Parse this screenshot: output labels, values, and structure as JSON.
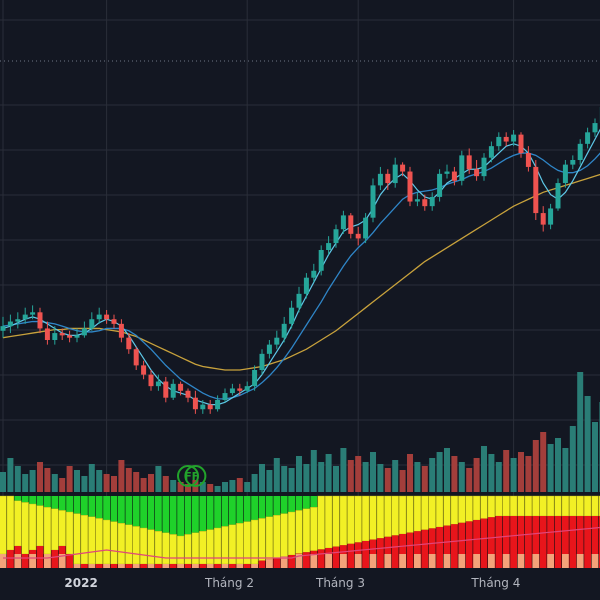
{
  "colors": {
    "background": "#131722",
    "grid": "#2a2e39",
    "up": "#26a69a",
    "down": "#ef5350",
    "vol_up": "#2a7d76",
    "vol_down": "#a33e3b",
    "ma_fast": "#5ec8e8",
    "ma_mid": "#2f86c8",
    "ma_slow": "#c8a23c",
    "marker": "#22a32b",
    "band_green": "#1fd12a",
    "band_yellow": "#f2f025",
    "band_red": "#e8151b",
    "band_salmon": "#f4a37a",
    "band_pink": "#e0457a"
  },
  "x_axis": {
    "labels": [
      {
        "text": "2022",
        "bold": true,
        "bar": 11
      },
      {
        "text": "Tháng 2",
        "bold": false,
        "bar": 30
      },
      {
        "text": "Tháng 3",
        "bold": false,
        "bar": 45
      },
      {
        "text": "Tháng 4",
        "bold": false,
        "bar": 66
      }
    ]
  },
  "markers": [
    {
      "text": "F",
      "bar": 25
    },
    {
      "text": "F",
      "bar": 26
    }
  ],
  "chart_data": {
    "type": "candlestick",
    "title": "",
    "x": [
      "b0",
      "b1",
      "b2",
      "b3",
      "b4",
      "b5",
      "b6",
      "b7",
      "b8",
      "b9",
      "b10",
      "b11",
      "b12",
      "b13",
      "b14",
      "b15",
      "b16",
      "b17",
      "b18",
      "b19",
      "b20",
      "b21",
      "b22",
      "b23",
      "b24",
      "b25",
      "b26",
      "b27",
      "b28",
      "b29",
      "b30",
      "b31",
      "b32",
      "b33",
      "b34",
      "b35",
      "b36",
      "b37",
      "b38",
      "b39",
      "b40",
      "b41",
      "b42",
      "b43",
      "b44",
      "b45",
      "b46",
      "b47",
      "b48",
      "b49",
      "b50",
      "b51",
      "b52",
      "b53",
      "b54",
      "b55",
      "b56",
      "b57",
      "b58",
      "b59",
      "b60",
      "b61",
      "b62",
      "b63",
      "b64",
      "b65",
      "b66",
      "b67",
      "b68",
      "b69",
      "b70",
      "b71",
      "b72",
      "b73",
      "b74",
      "b75",
      "b76",
      "b77",
      "b78",
      "b79",
      "b80",
      "b81"
    ],
    "open": [
      78,
      82,
      86,
      88,
      92,
      94,
      80,
      70,
      76,
      74,
      72,
      74,
      80,
      88,
      92,
      88,
      84,
      72,
      62,
      48,
      40,
      30,
      34,
      20,
      32,
      26,
      20,
      10,
      14,
      10,
      18,
      24,
      28,
      26,
      30,
      44,
      58,
      66,
      72,
      84,
      98,
      110,
      124,
      130,
      148,
      154,
      166,
      178,
      162,
      158,
      176,
      204,
      214,
      206,
      222,
      216,
      190,
      192,
      186,
      194,
      214,
      216,
      208,
      230,
      218,
      212,
      228,
      238,
      246,
      242,
      248,
      232,
      220,
      180,
      170,
      184,
      206,
      222,
      226,
      240,
      250,
      258
    ],
    "close": [
      82,
      86,
      88,
      92,
      94,
      80,
      70,
      76,
      74,
      72,
      74,
      80,
      88,
      92,
      88,
      84,
      72,
      62,
      48,
      40,
      30,
      34,
      20,
      32,
      26,
      20,
      10,
      14,
      10,
      18,
      24,
      28,
      26,
      30,
      44,
      58,
      66,
      72,
      84,
      98,
      110,
      124,
      130,
      148,
      154,
      166,
      178,
      162,
      158,
      176,
      204,
      214,
      206,
      222,
      216,
      190,
      192,
      186,
      194,
      214,
      216,
      208,
      230,
      218,
      212,
      228,
      238,
      246,
      242,
      248,
      232,
      220,
      180,
      170,
      184,
      206,
      222,
      226,
      240,
      250,
      258,
      272
    ],
    "high": [
      90,
      92,
      94,
      98,
      100,
      98,
      86,
      82,
      80,
      78,
      80,
      86,
      94,
      98,
      96,
      92,
      88,
      76,
      64,
      52,
      44,
      40,
      38,
      36,
      34,
      28,
      26,
      18,
      18,
      22,
      28,
      32,
      32,
      34,
      48,
      62,
      70,
      78,
      90,
      104,
      116,
      128,
      136,
      152,
      160,
      170,
      182,
      180,
      168,
      180,
      210,
      220,
      218,
      228,
      224,
      220,
      198,
      196,
      198,
      218,
      222,
      220,
      234,
      236,
      226,
      232,
      242,
      250,
      250,
      252,
      250,
      238,
      226,
      186,
      188,
      210,
      226,
      230,
      244,
      254,
      262,
      278
    ],
    "low": [
      72,
      76,
      80,
      84,
      88,
      76,
      66,
      66,
      70,
      68,
      68,
      72,
      78,
      84,
      84,
      80,
      68,
      58,
      44,
      36,
      26,
      26,
      16,
      18,
      22,
      16,
      6,
      6,
      6,
      8,
      16,
      22,
      22,
      24,
      26,
      40,
      54,
      62,
      68,
      80,
      94,
      106,
      120,
      126,
      144,
      150,
      162,
      158,
      152,
      154,
      172,
      200,
      200,
      202,
      212,
      186,
      186,
      182,
      182,
      190,
      210,
      204,
      204,
      214,
      208,
      208,
      224,
      234,
      238,
      238,
      228,
      216,
      174,
      164,
      166,
      182,
      202,
      218,
      222,
      236,
      246,
      252
    ],
    "volume": [
      20,
      34,
      26,
      18,
      22,
      30,
      24,
      18,
      14,
      26,
      22,
      16,
      28,
      22,
      18,
      16,
      32,
      24,
      20,
      14,
      18,
      26,
      16,
      12,
      10,
      8,
      12,
      10,
      8,
      6,
      10,
      12,
      14,
      10,
      18,
      28,
      22,
      34,
      26,
      24,
      36,
      28,
      42,
      30,
      38,
      26,
      44,
      32,
      36,
      30,
      40,
      28,
      24,
      32,
      22,
      38,
      30,
      26,
      34,
      40,
      44,
      36,
      30,
      24,
      34,
      46,
      38,
      30,
      42,
      34,
      40,
      36,
      52,
      60,
      48,
      54,
      44,
      66,
      120,
      96,
      70,
      90
    ],
    "ma_fast": [
      80,
      82,
      85,
      88,
      90,
      88,
      84,
      80,
      76,
      74,
      74,
      76,
      80,
      85,
      88,
      86,
      82,
      74,
      64,
      54,
      44,
      36,
      30,
      26,
      24,
      22,
      18,
      16,
      14,
      14,
      16,
      20,
      24,
      28,
      32,
      40,
      50,
      60,
      70,
      82,
      96,
      108,
      120,
      132,
      144,
      154,
      164,
      168,
      170,
      174,
      184,
      196,
      204,
      210,
      214,
      208,
      200,
      194,
      192,
      198,
      206,
      210,
      214,
      218,
      218,
      220,
      226,
      232,
      238,
      240,
      238,
      232,
      220,
      206,
      196,
      192,
      198,
      208,
      220,
      232,
      244,
      256
    ],
    "ma_mid": [
      82,
      83,
      84,
      85,
      86,
      86,
      85,
      84,
      82,
      80,
      78,
      77,
      77,
      78,
      80,
      80,
      80,
      78,
      74,
      68,
      62,
      55,
      48,
      42,
      36,
      32,
      28,
      24,
      21,
      19,
      19,
      20,
      22,
      25,
      28,
      33,
      39,
      46,
      54,
      63,
      73,
      83,
      93,
      103,
      114,
      124,
      134,
      143,
      150,
      156,
      163,
      171,
      178,
      185,
      192,
      196,
      198,
      199,
      200,
      202,
      205,
      207,
      209,
      212,
      214,
      216,
      219,
      223,
      227,
      230,
      232,
      232,
      230,
      226,
      221,
      217,
      215,
      215,
      217,
      221,
      227,
      234
    ],
    "ma_slow": [
      72,
      73,
      74,
      75,
      76,
      77,
      78,
      79,
      79,
      80,
      80,
      80,
      80,
      80,
      79,
      78,
      77,
      75,
      73,
      70,
      67,
      64,
      61,
      58,
      55,
      52,
      49,
      47,
      46,
      45,
      44,
      44,
      44,
      45,
      46,
      47,
      49,
      51,
      53,
      56,
      59,
      62,
      66,
      70,
      74,
      78,
      83,
      88,
      93,
      98,
      103,
      108,
      113,
      118,
      123,
      128,
      133,
      138,
      142,
      146,
      150,
      154,
      158,
      162,
      166,
      170,
      174,
      178,
      182,
      186,
      189,
      192,
      195,
      198,
      200,
      202,
      204,
      206,
      208,
      210,
      212,
      214
    ],
    "ylim": [
      -60,
      330
    ]
  }
}
